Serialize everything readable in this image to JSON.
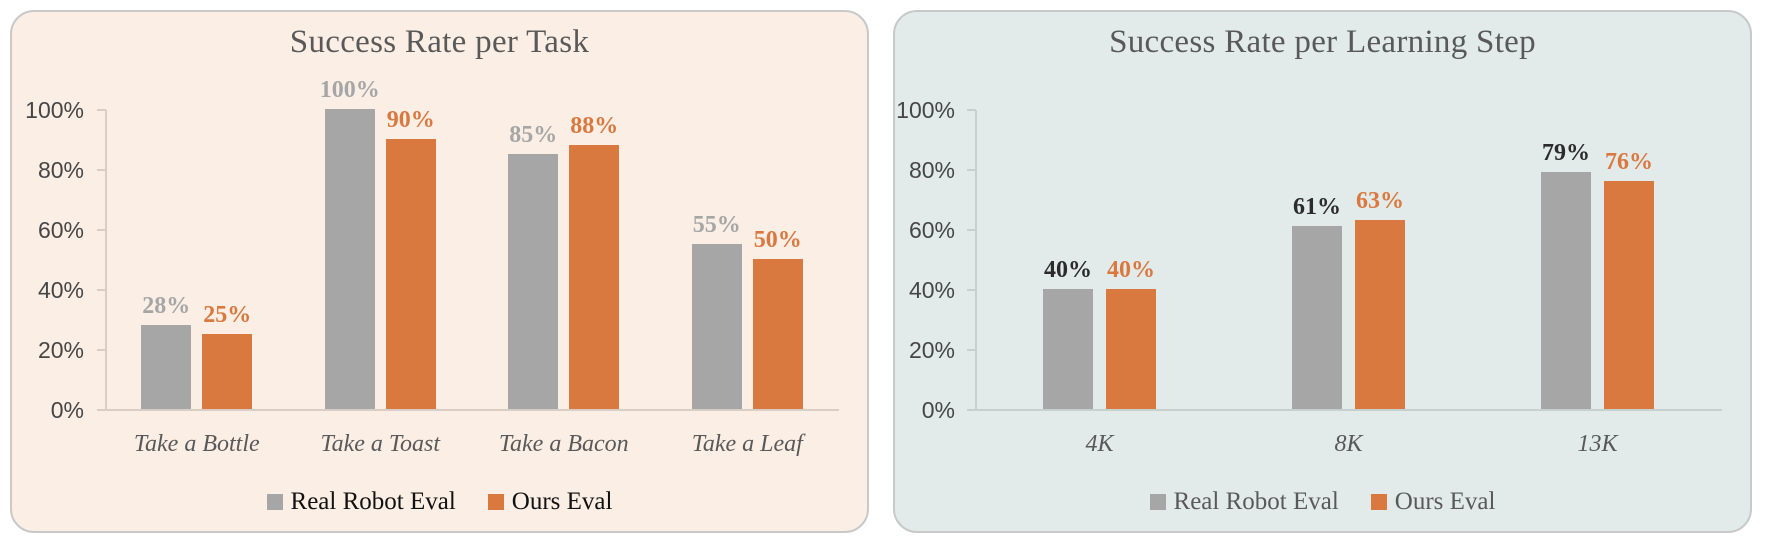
{
  "colors": {
    "series_gray": "#a6a6a6",
    "series_orange": "#d9783f",
    "left_panel_bg": "#faeee5",
    "right_panel_bg": "#e2ebe9",
    "title_text": "#595959",
    "right_value_label": "#2b2b2b"
  },
  "chart_data": [
    {
      "type": "bar",
      "title": "Success Rate per Task",
      "categories": [
        "Take a Bottle",
        "Take a Toast",
        "Take a Bacon",
        "Take a Leaf"
      ],
      "series": [
        {
          "name": "Real Robot Eval",
          "color": "#a6a6a6",
          "values": [
            28,
            100,
            85,
            55
          ],
          "labels": [
            "28%",
            "100%",
            "85%",
            "55%"
          ],
          "label_color": "#a6a6a6"
        },
        {
          "name": "Ours Eval",
          "color": "#d9783f",
          "values": [
            25,
            90,
            88,
            50
          ],
          "labels": [
            "25%",
            "90%",
            "88%",
            "50%"
          ],
          "label_color": "#d9783f"
        }
      ],
      "y_ticks": [
        "100%",
        "80%",
        "60%",
        "40%",
        "20%",
        "0%"
      ],
      "ylabel": "",
      "xlabel": "",
      "ylim": [
        0,
        100
      ],
      "grid": false,
      "legend_position": "bottom",
      "panel_bg": "#faeee5"
    },
    {
      "type": "bar",
      "title": "Success Rate per Learning Step",
      "categories": [
        "4K",
        "8K",
        "13K"
      ],
      "series": [
        {
          "name": "Real Robot Eval",
          "color": "#a6a6a6",
          "values": [
            40,
            61,
            79
          ],
          "labels": [
            "40%",
            "61%",
            "79%"
          ],
          "label_color": "#2b2b2b"
        },
        {
          "name": "Ours Eval",
          "color": "#d9783f",
          "values": [
            40,
            63,
            76
          ],
          "labels": [
            "40%",
            "63%",
            "76%"
          ],
          "label_color": "#d9783f"
        }
      ],
      "y_ticks": [
        "100%",
        "80%",
        "60%",
        "40%",
        "20%",
        "0%"
      ],
      "ylabel": "",
      "xlabel": "",
      "ylim": [
        0,
        100
      ],
      "grid": false,
      "legend_position": "bottom",
      "panel_bg": "#e2ebe9"
    }
  ]
}
